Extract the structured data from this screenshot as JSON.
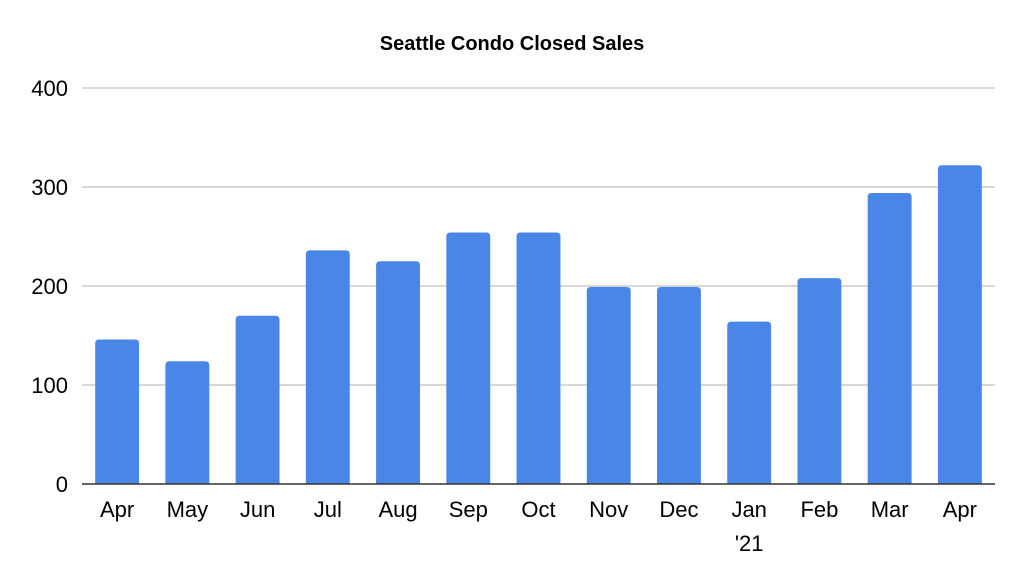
{
  "chart_data": {
    "type": "bar",
    "title": "Seattle Condo Closed Sales",
    "xlabel": "",
    "ylabel": "",
    "categories": [
      "Apr",
      "May",
      "Jun",
      "Jul",
      "Aug",
      "Sep",
      "Oct",
      "Nov",
      "Dec",
      "Jan\n'21",
      "Feb",
      "Mar",
      "Apr"
    ],
    "series": [
      {
        "values": [
          146,
          124,
          170,
          236,
          225,
          254,
          254,
          199,
          199,
          164,
          208,
          294,
          322
        ],
        "color": "#4a86e8"
      }
    ],
    "ylim": [
      0,
      400
    ],
    "yticks": [
      0,
      100,
      200,
      300,
      400
    ],
    "grid": true,
    "legend": "none"
  }
}
